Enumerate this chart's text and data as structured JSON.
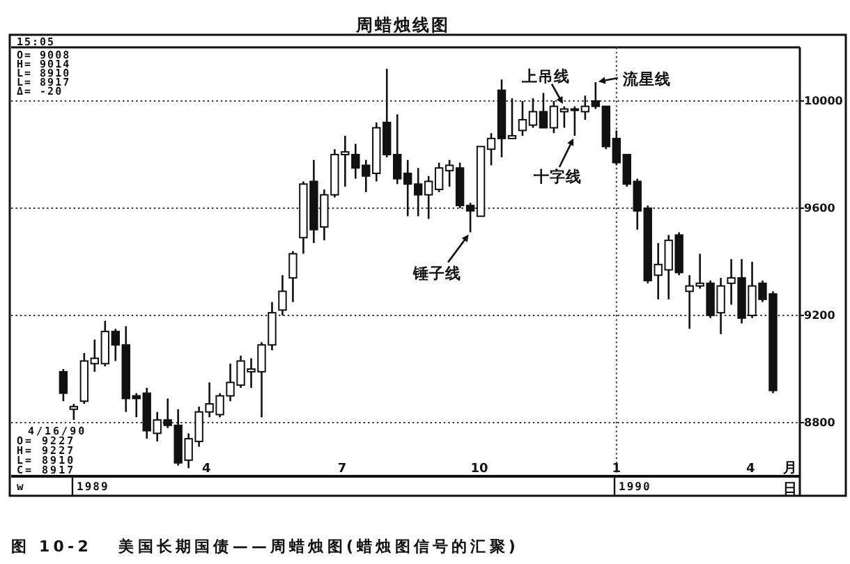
{
  "chart_data": {
    "type": "candlestick",
    "title": "周蜡烛线图",
    "xlabel": "月",
    "color": "#111111",
    "x": [
      "1988-12-26",
      "1989-01-02",
      "1989-01-09",
      "1989-01-16",
      "1989-01-23",
      "1989-01-30",
      "1989-02-06",
      "1989-02-13",
      "1989-02-20",
      "1989-02-27",
      "1989-03-06",
      "1989-03-13",
      "1989-03-20",
      "1989-03-27",
      "1989-04-03",
      "1989-04-10",
      "1989-04-17",
      "1989-04-24",
      "1989-05-01",
      "1989-05-08",
      "1989-05-15",
      "1989-05-22",
      "1989-05-29",
      "1989-06-05",
      "1989-06-12",
      "1989-06-19",
      "1989-06-26",
      "1989-07-03",
      "1989-07-10",
      "1989-07-17",
      "1989-07-24",
      "1989-07-31",
      "1989-08-07",
      "1989-08-14",
      "1989-08-21",
      "1989-08-28",
      "1989-09-04",
      "1989-09-11",
      "1989-09-18",
      "1989-09-25",
      "1989-10-02",
      "1989-10-09",
      "1989-10-16",
      "1989-10-23",
      "1989-10-30",
      "1989-11-06",
      "1989-11-13",
      "1989-11-20",
      "1989-11-27",
      "1989-12-04",
      "1989-12-11",
      "1989-12-18",
      "1989-12-25",
      "1990-01-01",
      "1990-01-08",
      "1990-01-15",
      "1990-01-22",
      "1990-01-29",
      "1990-02-05",
      "1990-02-12",
      "1990-02-19",
      "1990-02-26",
      "1990-03-05",
      "1990-03-12",
      "1990-03-19",
      "1990-03-26",
      "1990-04-02",
      "1990-04-09",
      "1990-04-16"
    ],
    "ohlc": [
      [
        8990,
        9000,
        8880,
        8910
      ],
      [
        8850,
        8870,
        8810,
        8860
      ],
      [
        8880,
        9060,
        8870,
        9030
      ],
      [
        9020,
        9110,
        8990,
        9040
      ],
      [
        9020,
        9180,
        9010,
        9140
      ],
      [
        9140,
        9150,
        9030,
        9090
      ],
      [
        9090,
        9160,
        8840,
        8890
      ],
      [
        8900,
        8910,
        8820,
        8890
      ],
      [
        8910,
        8930,
        8740,
        8770
      ],
      [
        8760,
        8840,
        8730,
        8810
      ],
      [
        8810,
        8890,
        8780,
        8790
      ],
      [
        8790,
        8850,
        8640,
        8650
      ],
      [
        8660,
        8760,
        8630,
        8740
      ],
      [
        8730,
        8860,
        8710,
        8840
      ],
      [
        8840,
        8950,
        8820,
        8870
      ],
      [
        8830,
        8910,
        8820,
        8900
      ],
      [
        8900,
        9020,
        8880,
        8950
      ],
      [
        8940,
        9050,
        8930,
        9030
      ],
      [
        8990,
        9040,
        8930,
        9000
      ],
      [
        8990,
        9100,
        8820,
        9090
      ],
      [
        9090,
        9250,
        9070,
        9210
      ],
      [
        9220,
        9350,
        9200,
        9290
      ],
      [
        9340,
        9440,
        9250,
        9430
      ],
      [
        9490,
        9700,
        9430,
        9690
      ],
      [
        9700,
        9780,
        9470,
        9520
      ],
      [
        9530,
        9670,
        9480,
        9650
      ],
      [
        9650,
        9820,
        9640,
        9800
      ],
      [
        9800,
        9870,
        9680,
        9810
      ],
      [
        9800,
        9840,
        9710,
        9750
      ],
      [
        9760,
        9780,
        9660,
        9720
      ],
      [
        9730,
        9920,
        9700,
        9900
      ],
      [
        9920,
        10120,
        9790,
        9800
      ],
      [
        9800,
        9950,
        9690,
        9710
      ],
      [
        9730,
        9780,
        9570,
        9690
      ],
      [
        9690,
        9750,
        9570,
        9650
      ],
      [
        9650,
        9720,
        9560,
        9700
      ],
      [
        9670,
        9770,
        9660,
        9750
      ],
      [
        9740,
        9780,
        9680,
        9760
      ],
      [
        9750,
        9770,
        9600,
        9610
      ],
      [
        9610,
        9620,
        9510,
        9590
      ],
      [
        9570,
        9830,
        9570,
        9830
      ],
      [
        9820,
        9880,
        9760,
        9860
      ],
      [
        10040,
        10080,
        9790,
        9860
      ],
      [
        9860,
        10010,
        9860,
        9870
      ],
      [
        9890,
        10000,
        9870,
        9930
      ],
      [
        9910,
        10010,
        9900,
        9960
      ],
      [
        9960,
        10030,
        9900,
        9900
      ],
      [
        9900,
        10000,
        9880,
        9980
      ],
      [
        9960,
        9980,
        9900,
        9970
      ],
      [
        9970,
        9980,
        9870,
        9970
      ],
      [
        9960,
        10020,
        9930,
        9980
      ],
      [
        10000,
        10070,
        9970,
        9980
      ],
      [
        9980,
        9980,
        9820,
        9830
      ],
      [
        9860,
        9890,
        9760,
        9770
      ],
      [
        9800,
        9800,
        9680,
        9690
      ],
      [
        9700,
        9710,
        9520,
        9590
      ],
      [
        9600,
        9610,
        9320,
        9330
      ],
      [
        9350,
        9470,
        9260,
        9390
      ],
      [
        9370,
        9500,
        9260,
        9480
      ],
      [
        9500,
        9510,
        9350,
        9360
      ],
      [
        9290,
        9350,
        9150,
        9310
      ],
      [
        9310,
        9430,
        9300,
        9320
      ],
      [
        9320,
        9330,
        9190,
        9200
      ],
      [
        9210,
        9340,
        9130,
        9310
      ],
      [
        9320,
        9410,
        9240,
        9340
      ],
      [
        9340,
        9410,
        9170,
        9190
      ],
      [
        9200,
        9400,
        9190,
        9310
      ],
      [
        9320,
        9330,
        9250,
        9260
      ],
      [
        9280,
        9290,
        8910,
        8920
      ]
    ],
    "xlim": [
      "1988-11-21",
      "1990-05-04"
    ],
    "xticks": [
      {
        "value": "1989-04-01",
        "label": "4"
      },
      {
        "value": "1989-07-01",
        "label": "7"
      },
      {
        "value": "1989-10-01",
        "label": "10"
      },
      {
        "value": "1990-01-01",
        "label": "1"
      },
      {
        "value": "1990-04-01",
        "label": "4"
      }
    ],
    "ylim": [
      8600,
      10200
    ],
    "yticks": [
      8800,
      9200,
      9600,
      10000
    ],
    "grid": "y",
    "ref_lines": [
      {
        "axis": "x",
        "value": "1990-01-01",
        "line_style": "dotted"
      }
    ],
    "annotations": [
      "15:05",
      "O= 9008",
      "H= 9014",
      "L= 8910",
      "L= 8917",
      "Δ= -20",
      "4/16/90",
      "O= 9227",
      "H= 9227",
      "L= 8910",
      "C= 8917",
      "w",
      "1989",
      "1990",
      "日",
      {
        "text": "上吊线",
        "x": "1989-11-27",
        "y": 9980
      },
      {
        "text": "十字线",
        "x": "1989-12-04",
        "y": 9870
      },
      {
        "text": "流星线",
        "x": "1989-12-18",
        "y": 10070
      },
      {
        "text": "锤子线",
        "x": "1989-09-25",
        "y": 9510
      },
      "图 10-2   美国长期国债——周蜡烛图(蜡烛图信号的汇聚)"
    ]
  }
}
